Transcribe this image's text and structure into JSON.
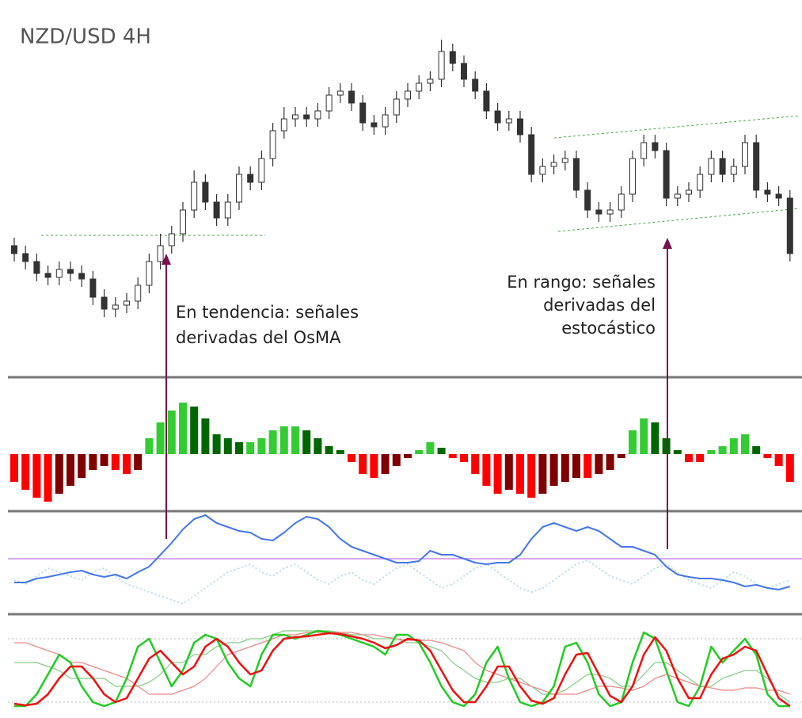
{
  "chart_data": [
    {
      "type": "candlestick",
      "title": "NZD/USD 4H",
      "annotations": [
        {
          "lines": [
            "En tendencia: señales",
            "derivadas del OsMA"
          ]
        },
        {
          "lines": [
            "En rango: señales",
            "derivadas del",
            "estocástico"
          ]
        }
      ],
      "up_color": "#ffffff",
      "down_color": "#333333",
      "ylim": [
        0,
        470
      ],
      "open": [
        160,
        150,
        140,
        125,
        120,
        130,
        125,
        118,
        95,
        80,
        85,
        90,
        110,
        140,
        160,
        175,
        205,
        240,
        215,
        195,
        215,
        250,
        240,
        270,
        305,
        320,
        325,
        320,
        330,
        350,
        355,
        340,
        315,
        310,
        325,
        345,
        355,
        365,
        370,
        405,
        390,
        370,
        355,
        330,
        315,
        320,
        300,
        250,
        260,
        265,
        270,
        230,
        205,
        200,
        205,
        225,
        270,
        290,
        280,
        220,
        225,
        230,
        250,
        270,
        250,
        260,
        290,
        230,
        225,
        220
      ],
      "high": [
        170,
        160,
        150,
        135,
        140,
        140,
        135,
        128,
        105,
        95,
        100,
        120,
        150,
        175,
        185,
        215,
        255,
        250,
        225,
        225,
        260,
        260,
        280,
        315,
        335,
        335,
        335,
        340,
        360,
        365,
        365,
        350,
        325,
        335,
        355,
        365,
        375,
        380,
        420,
        415,
        400,
        380,
        365,
        340,
        330,
        330,
        310,
        270,
        275,
        280,
        280,
        240,
        215,
        215,
        235,
        280,
        300,
        300,
        290,
        235,
        240,
        260,
        280,
        280,
        270,
        300,
        300,
        240,
        235,
        230
      ],
      "low": [
        140,
        130,
        115,
        110,
        110,
        115,
        108,
        85,
        70,
        70,
        75,
        80,
        100,
        130,
        150,
        165,
        195,
        205,
        185,
        185,
        205,
        230,
        230,
        260,
        295,
        310,
        310,
        310,
        320,
        340,
        330,
        305,
        300,
        300,
        315,
        335,
        345,
        355,
        360,
        380,
        360,
        345,
        320,
        305,
        305,
        290,
        240,
        240,
        250,
        255,
        220,
        195,
        190,
        190,
        195,
        215,
        260,
        270,
        210,
        210,
        215,
        220,
        240,
        240,
        240,
        250,
        220,
        215,
        210,
        140
      ],
      "close": [
        150,
        140,
        125,
        120,
        130,
        125,
        118,
        95,
        80,
        85,
        90,
        110,
        140,
        160,
        175,
        205,
        240,
        215,
        195,
        215,
        250,
        240,
        270,
        305,
        320,
        325,
        320,
        330,
        350,
        355,
        340,
        315,
        310,
        325,
        345,
        355,
        365,
        370,
        405,
        390,
        370,
        355,
        330,
        315,
        320,
        300,
        250,
        260,
        265,
        270,
        230,
        205,
        200,
        205,
        225,
        270,
        290,
        280,
        220,
        225,
        230,
        250,
        270,
        250,
        260,
        290,
        230,
        225,
        220,
        150
      ]
    },
    {
      "type": "bar",
      "ylim": [
        -67,
        95
      ],
      "colors": [
        "#33cc33",
        "#006600",
        "#ff0000",
        "#800000"
      ],
      "values": [
        -35,
        -45,
        -55,
        -60,
        -50,
        -40,
        -30,
        -20,
        -15,
        -20,
        -25,
        -20,
        20,
        40,
        55,
        65,
        60,
        45,
        25,
        20,
        15,
        15,
        20,
        30,
        35,
        35,
        30,
        20,
        10,
        5,
        -10,
        -25,
        -30,
        -25,
        -15,
        -5,
        5,
        15,
        8,
        -5,
        -10,
        -25,
        -40,
        -50,
        -45,
        -50,
        -55,
        -50,
        -40,
        -35,
        -30,
        -30,
        -25,
        -20,
        -5,
        30,
        45,
        40,
        20,
        5,
        -10,
        -10,
        5,
        10,
        20,
        25,
        10,
        -5,
        -15,
        -35
      ]
    },
    {
      "type": "line",
      "ylim": [
        0,
        124
      ],
      "levels": [
        67
      ],
      "level_color": "#cc88ee",
      "series": [
        {
          "color": "#b8dcee",
          "dashed": true,
          "values": [
            40,
            35,
            45,
            55,
            50,
            45,
            40,
            50,
            55,
            45,
            35,
            30,
            25,
            20,
            15,
            10,
            20,
            30,
            40,
            50,
            55,
            60,
            50,
            45,
            55,
            60,
            50,
            40,
            35,
            45,
            50,
            40,
            35,
            45,
            55,
            60,
            50,
            40,
            30,
            35,
            45,
            55,
            60,
            50,
            40,
            30,
            25,
            30,
            40,
            50,
            60,
            65,
            55,
            45,
            40,
            35,
            45,
            55,
            60,
            50,
            40,
            35,
            30,
            40,
            50,
            45,
            35,
            30,
            35,
            40
          ]
        },
        {
          "color": "#4477ee",
          "values": [
            37,
            37,
            42,
            44,
            47,
            50,
            52,
            47,
            44,
            47,
            42,
            50,
            57,
            72,
            87,
            104,
            117,
            122,
            112,
            107,
            102,
            100,
            92,
            90,
            100,
            112,
            120,
            117,
            107,
            92,
            82,
            77,
            72,
            67,
            62,
            62,
            64,
            77,
            72,
            72,
            67,
            62,
            60,
            62,
            62,
            72,
            92,
            107,
            112,
            107,
            102,
            107,
            102,
            92,
            82,
            82,
            77,
            72,
            57,
            47,
            44,
            42,
            42,
            40,
            37,
            32,
            34,
            30,
            28,
            32
          ]
        }
      ]
    },
    {
      "type": "line",
      "ylim": [
        0,
        100
      ],
      "levels": [
        90,
        10
      ],
      "level_color": "#bbbbbb",
      "series": [
        {
          "color": "#88cc88",
          "width": 1.2,
          "values": [
            60,
            60,
            60,
            55,
            50,
            40,
            40,
            40,
            40,
            30,
            30,
            30,
            35,
            45,
            60,
            60,
            70,
            70,
            80,
            85,
            85,
            90,
            90,
            95,
            100,
            100,
            100,
            100,
            100,
            98,
            95,
            95,
            90,
            90,
            90,
            85,
            85,
            80,
            75,
            60,
            50,
            40,
            35,
            35,
            40,
            40,
            30,
            20,
            20,
            25,
            35,
            45,
            45,
            40,
            30,
            30,
            45,
            60,
            60,
            50,
            40,
            30,
            30,
            40,
            45,
            50,
            50,
            40,
            20,
            10
          ]
        },
        {
          "color": "#ee8888",
          "width": 1.2,
          "values": [
            85,
            85,
            80,
            75,
            70,
            60,
            60,
            55,
            50,
            45,
            40,
            30,
            20,
            20,
            20,
            25,
            30,
            40,
            55,
            70,
            75,
            80,
            85,
            90,
            95,
            95,
            98,
            98,
            98,
            98,
            98,
            95,
            95,
            92,
            90,
            88,
            88,
            88,
            85,
            80,
            75,
            60,
            50,
            45,
            40,
            35,
            30,
            25,
            20,
            20,
            20,
            25,
            30,
            30,
            28,
            25,
            30,
            40,
            45,
            40,
            35,
            30,
            28,
            25,
            25,
            28,
            28,
            25,
            25,
            20
          ]
        },
        {
          "color": "#22cc22",
          "width": 2.5,
          "values": [
            5,
            5,
            20,
            45,
            70,
            60,
            30,
            10,
            5,
            10,
            40,
            80,
            90,
            60,
            30,
            50,
            85,
            95,
            90,
            60,
            40,
            30,
            70,
            95,
            95,
            90,
            95,
            100,
            98,
            95,
            90,
            85,
            80,
            70,
            95,
            95,
            85,
            60,
            30,
            10,
            5,
            20,
            60,
            80,
            40,
            10,
            5,
            10,
            30,
            80,
            85,
            60,
            20,
            5,
            10,
            60,
            98,
            90,
            50,
            10,
            5,
            30,
            80,
            60,
            75,
            90,
            70,
            20,
            5,
            5
          ]
        },
        {
          "color": "#ee1111",
          "width": 2.5,
          "values": [
            8,
            6,
            8,
            20,
            40,
            55,
            55,
            40,
            20,
            10,
            15,
            40,
            65,
            75,
            60,
            45,
            55,
            80,
            90,
            80,
            60,
            45,
            50,
            75,
            90,
            92,
            93,
            95,
            97,
            96,
            93,
            90,
            85,
            78,
            82,
            90,
            88,
            75,
            50,
            25,
            10,
            10,
            30,
            55,
            55,
            30,
            12,
            8,
            15,
            45,
            70,
            72,
            45,
            18,
            10,
            30,
            70,
            92,
            75,
            40,
            15,
            15,
            45,
            65,
            70,
            80,
            75,
            45,
            15,
            5
          ]
        }
      ]
    }
  ]
}
